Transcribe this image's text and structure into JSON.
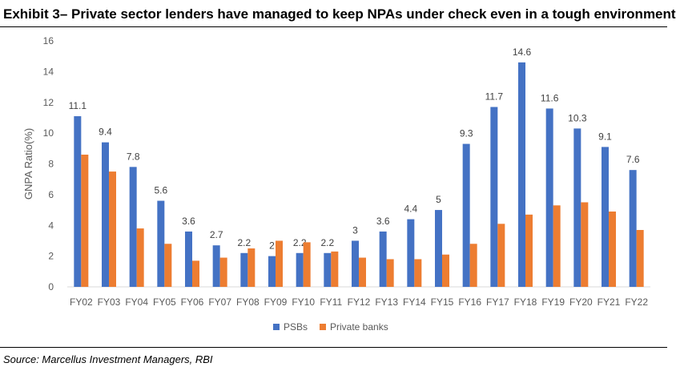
{
  "title": "Exhibit 3– Private sector lenders have managed to keep NPAs under check even in a tough environment",
  "source": "Source: Marcellus Investment Managers, RBI",
  "chart_data": {
    "type": "bar",
    "title": "",
    "xlabel": "",
    "ylabel": "GNPA Ratio(%)",
    "ylim": [
      0,
      16
    ],
    "yticks": [
      0,
      2,
      4,
      6,
      8,
      10,
      12,
      14,
      16
    ],
    "grid": false,
    "legend": "bottom",
    "categories": [
      "FY02",
      "FY03",
      "FY04",
      "FY05",
      "FY06",
      "FY07",
      "FY08",
      "FY09",
      "FY10",
      "FY11",
      "FY12",
      "FY13",
      "FY14",
      "FY15",
      "FY16",
      "FY17",
      "FY18",
      "FY19",
      "FY20",
      "FY21",
      "FY22"
    ],
    "series": [
      {
        "name": "PSBs",
        "color": "#4472C4",
        "labeled": true,
        "values": [
          11.1,
          9.4,
          7.8,
          5.6,
          3.6,
          2.7,
          2.2,
          2,
          2.2,
          2.2,
          3,
          3.6,
          4.4,
          5,
          9.3,
          11.7,
          14.6,
          11.6,
          10.3,
          9.1,
          7.6
        ]
      },
      {
        "name": "Private banks",
        "color": "#ED7D31",
        "labeled": false,
        "values": [
          8.6,
          7.5,
          3.8,
          2.8,
          1.7,
          1.9,
          2.5,
          3.0,
          2.9,
          2.3,
          1.9,
          1.8,
          1.8,
          2.1,
          2.8,
          4.1,
          4.7,
          5.3,
          5.5,
          4.9,
          3.7
        ]
      }
    ]
  }
}
